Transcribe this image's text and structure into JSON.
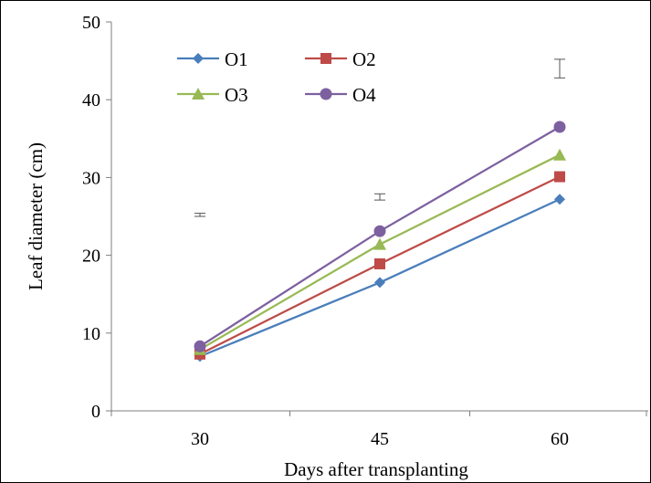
{
  "chart_data": {
    "type": "line",
    "title": "",
    "xlabel": "Days after transplanting",
    "ylabel": "Leaf diameter (cm)",
    "categories": [
      "30",
      "45",
      "60"
    ],
    "ylim": [
      0,
      50
    ],
    "yticks": [
      0,
      10,
      20,
      30,
      40,
      50
    ],
    "grid": false,
    "legend_position": "top-left",
    "series": [
      {
        "name": "O1",
        "values": [
          7.0,
          16.5,
          27.2
        ],
        "color": "#4a7ebb",
        "marker": "diamond"
      },
      {
        "name": "O2",
        "values": [
          7.3,
          18.9,
          30.1
        ],
        "color": "#be4b48",
        "marker": "square"
      },
      {
        "name": "O3",
        "values": [
          7.9,
          21.4,
          32.9
        ],
        "color": "#98b954",
        "marker": "triangle"
      },
      {
        "name": "O4",
        "values": [
          8.3,
          23.1,
          36.5
        ],
        "color": "#7d60a0",
        "marker": "circle"
      }
    ],
    "error_bars": [
      {
        "category": "30",
        "center": 25.2,
        "low": 25.0,
        "high": 25.4
      },
      {
        "category": "45",
        "center": 27.5,
        "low": 27.1,
        "high": 27.9
      },
      {
        "category": "60",
        "center": 44.0,
        "low": 42.8,
        "high": 45.2
      }
    ]
  }
}
